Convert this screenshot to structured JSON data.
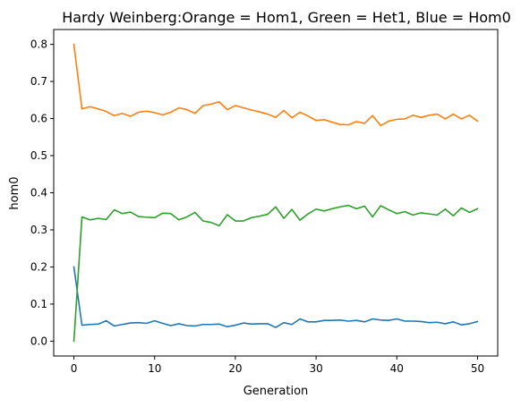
{
  "chart_data": {
    "type": "line",
    "title": "Hardy Weinberg:Orange = Hom1, Green = Het1, Blue = Hom0",
    "xlabel": "Generation",
    "ylabel": "hom0",
    "xlim": [
      -2.5,
      52.5
    ],
    "ylim": [
      -0.04,
      0.84
    ],
    "xticks": [
      0,
      10,
      20,
      30,
      40,
      50
    ],
    "yticks": [
      0.0,
      0.1,
      0.2,
      0.3,
      0.4,
      0.5,
      0.6,
      0.7,
      0.8
    ],
    "xtick_labels": [
      "0",
      "10",
      "20",
      "30",
      "40",
      "50"
    ],
    "ytick_labels": [
      "0.0",
      "0.1",
      "0.2",
      "0.3",
      "0.4",
      "0.5",
      "0.6",
      "0.7",
      "0.8"
    ],
    "grid": false,
    "legend": "none",
    "x": [
      0,
      1,
      2,
      3,
      4,
      5,
      6,
      7,
      8,
      9,
      10,
      11,
      12,
      13,
      14,
      15,
      16,
      17,
      18,
      19,
      20,
      21,
      22,
      23,
      24,
      25,
      26,
      27,
      28,
      29,
      30,
      31,
      32,
      33,
      34,
      35,
      36,
      37,
      38,
      39,
      40,
      41,
      42,
      43,
      44,
      45,
      46,
      47,
      48,
      49,
      50
    ],
    "series": [
      {
        "color": "#1f77b4",
        "values": [
          0.2,
          0.043,
          0.045,
          0.046,
          0.055,
          0.041,
          0.045,
          0.049,
          0.05,
          0.048,
          0.055,
          0.048,
          0.042,
          0.047,
          0.042,
          0.041,
          0.045,
          0.045,
          0.046,
          0.039,
          0.043,
          0.049,
          0.046,
          0.047,
          0.047,
          0.037,
          0.05,
          0.045,
          0.06,
          0.052,
          0.052,
          0.056,
          0.056,
          0.057,
          0.054,
          0.056,
          0.052,
          0.06,
          0.057,
          0.056,
          0.06,
          0.054,
          0.054,
          0.053,
          0.05,
          0.051,
          0.047,
          0.052,
          0.044,
          0.047,
          0.053
        ]
      },
      {
        "color": "#ff7f0e",
        "values": [
          0.8,
          0.626,
          0.632,
          0.626,
          0.619,
          0.608,
          0.614,
          0.606,
          0.617,
          0.62,
          0.616,
          0.61,
          0.617,
          0.629,
          0.624,
          0.614,
          0.635,
          0.639,
          0.645,
          0.624,
          0.635,
          0.629,
          0.623,
          0.618,
          0.612,
          0.603,
          0.622,
          0.602,
          0.617,
          0.607,
          0.595,
          0.597,
          0.59,
          0.584,
          0.583,
          0.592,
          0.587,
          0.608,
          0.581,
          0.593,
          0.598,
          0.599,
          0.609,
          0.603,
          0.609,
          0.612,
          0.599,
          0.612,
          0.599,
          0.609,
          0.593
        ]
      },
      {
        "color": "#2ca02c",
        "values": [
          0.0,
          0.335,
          0.327,
          0.331,
          0.328,
          0.354,
          0.344,
          0.348,
          0.336,
          0.334,
          0.333,
          0.345,
          0.344,
          0.327,
          0.335,
          0.347,
          0.324,
          0.32,
          0.311,
          0.341,
          0.324,
          0.324,
          0.333,
          0.337,
          0.342,
          0.362,
          0.331,
          0.355,
          0.326,
          0.343,
          0.356,
          0.351,
          0.357,
          0.362,
          0.366,
          0.357,
          0.364,
          0.335,
          0.365,
          0.354,
          0.344,
          0.349,
          0.34,
          0.346,
          0.343,
          0.34,
          0.356,
          0.338,
          0.359,
          0.347,
          0.357
        ]
      }
    ]
  }
}
